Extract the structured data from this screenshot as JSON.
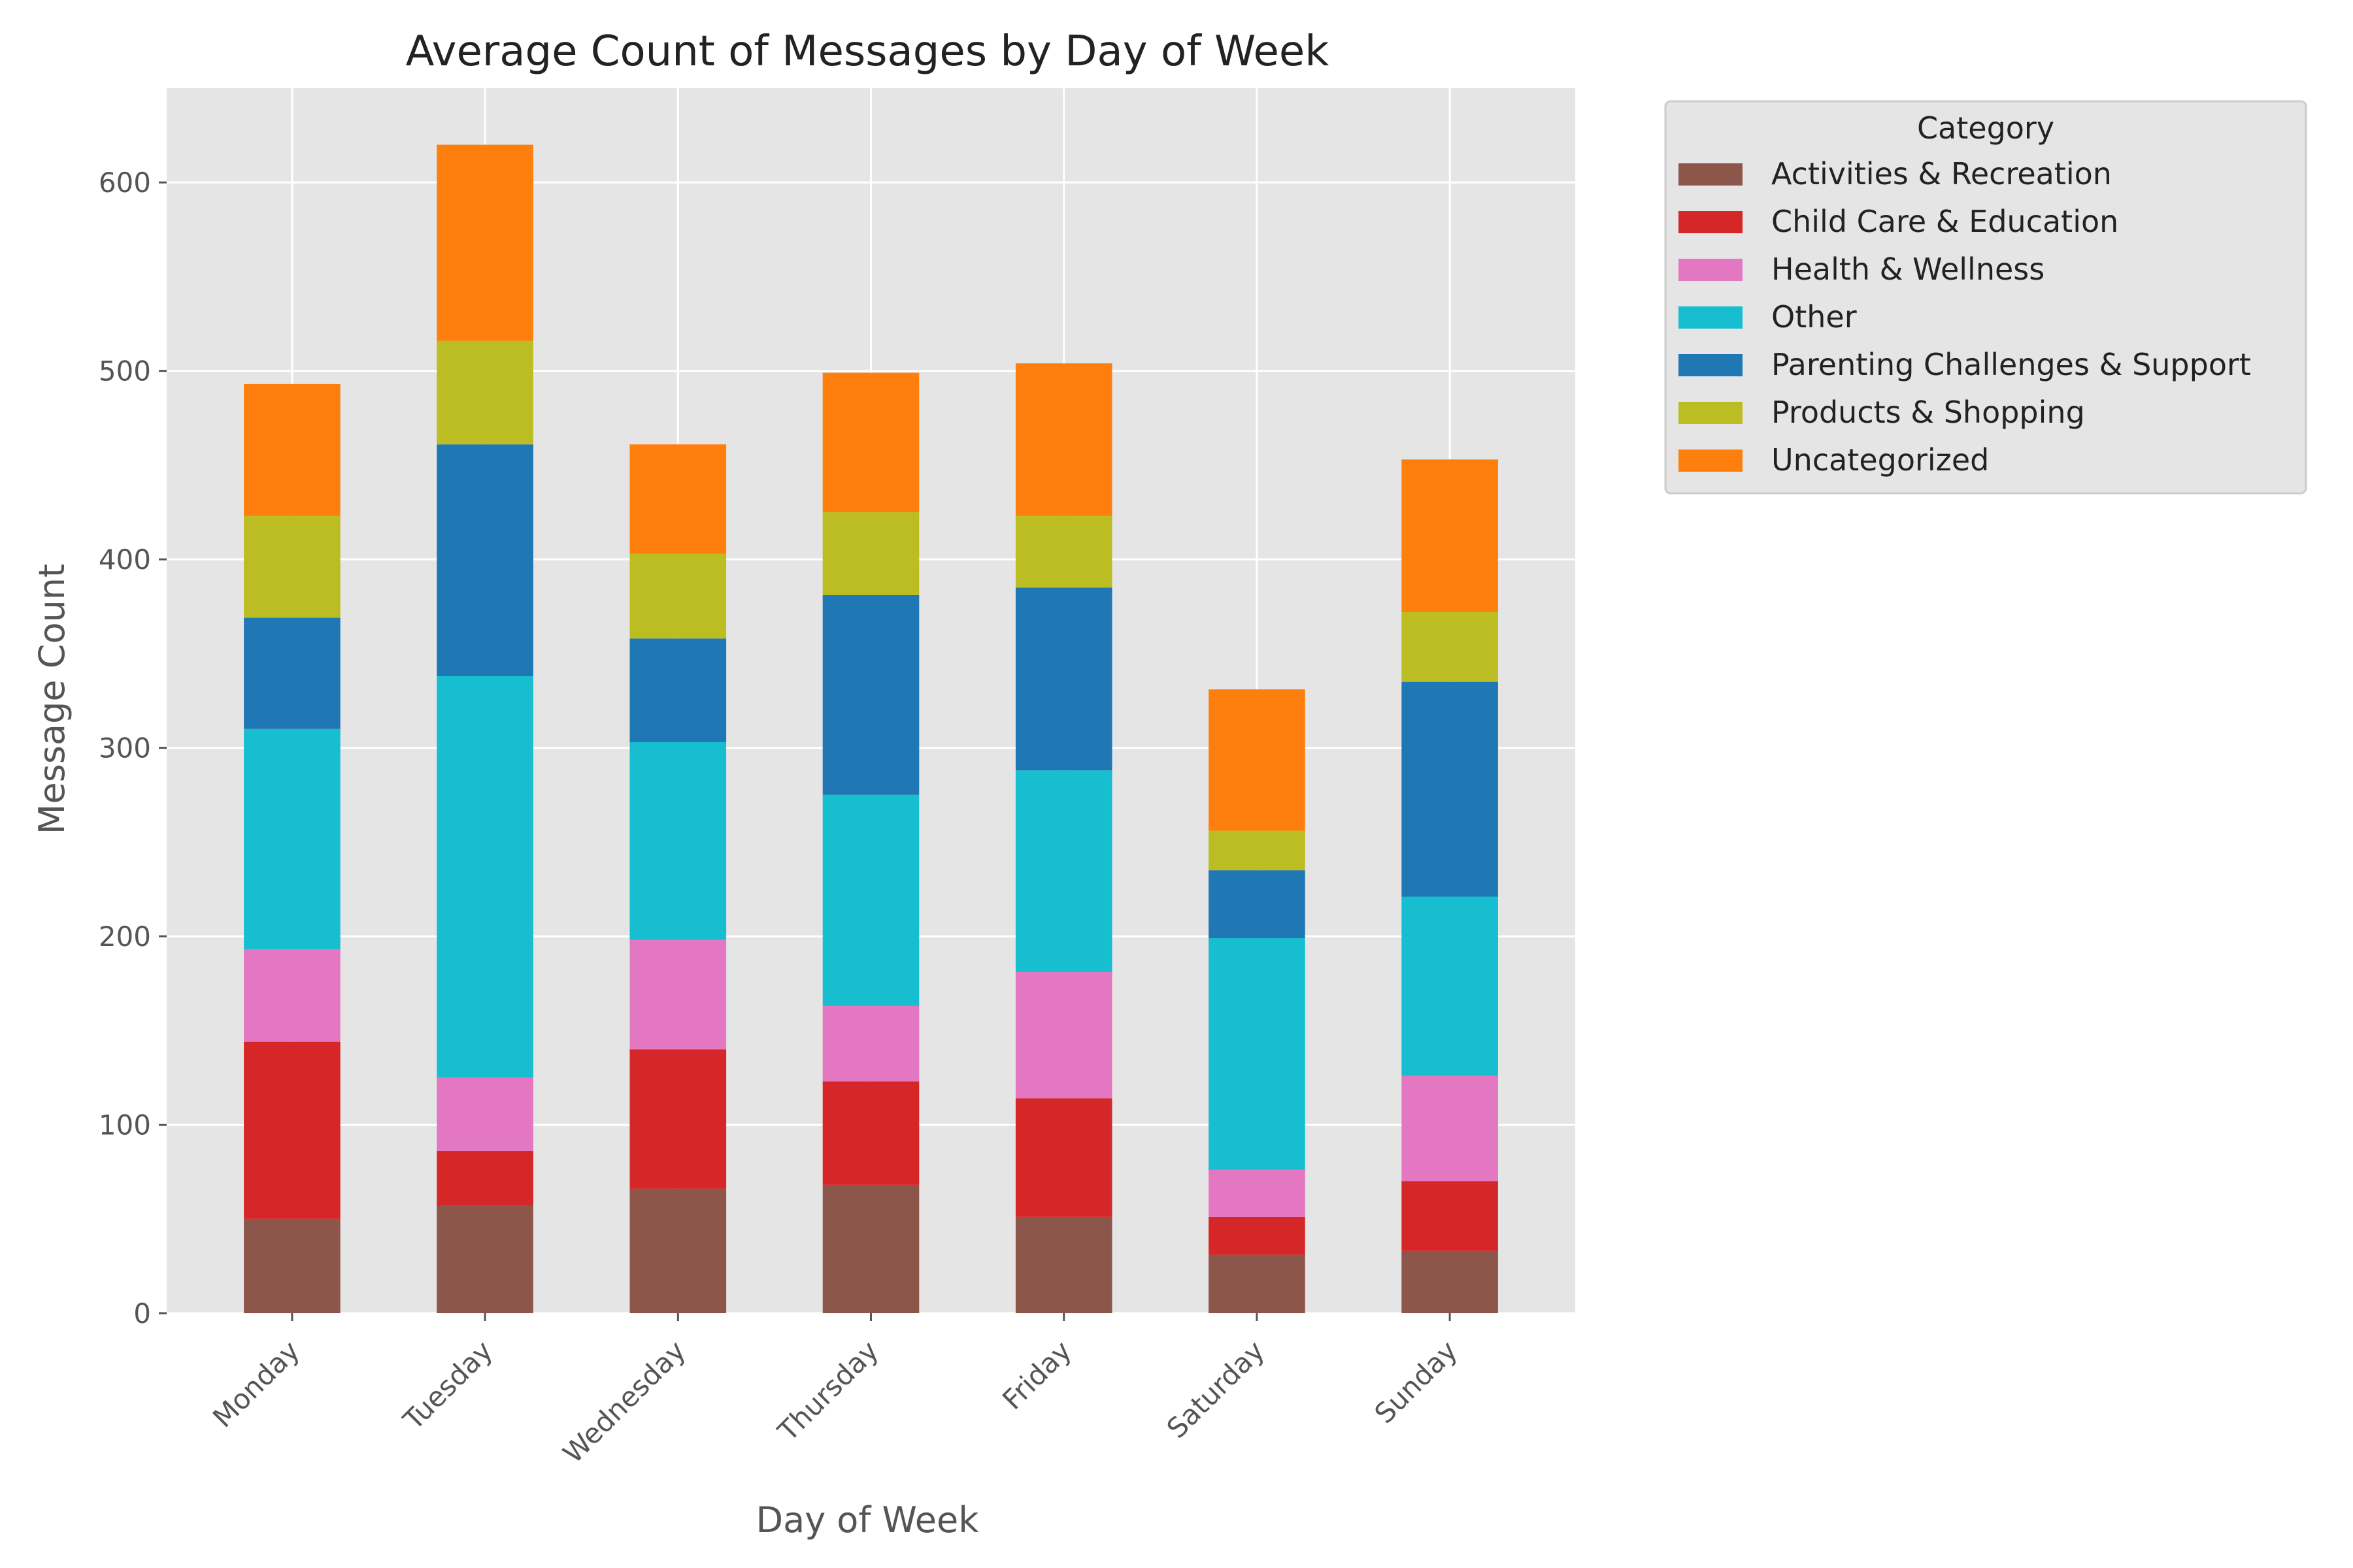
{
  "chart_data": {
    "type": "bar",
    "stacked": true,
    "title": "Average Count of Messages by Day of Week",
    "xlabel": "Day of Week",
    "ylabel": "Message Count",
    "ylim": [
      0,
      650
    ],
    "yticks": [
      0,
      100,
      200,
      300,
      400,
      500,
      600
    ],
    "grid": true,
    "legend": {
      "title": "Category",
      "placement": "outside-top-right"
    },
    "categories": [
      "Monday",
      "Tuesday",
      "Wednesday",
      "Thursday",
      "Friday",
      "Saturday",
      "Sunday"
    ],
    "series": [
      {
        "name": "Activities & Recreation",
        "color": "#8c564b",
        "values": [
          50,
          57,
          66,
          68,
          51,
          31,
          33
        ]
      },
      {
        "name": "Child Care & Education",
        "color": "#d62728",
        "values": [
          94,
          29,
          74,
          55,
          63,
          20,
          37
        ]
      },
      {
        "name": "Health & Wellness",
        "color": "#e377c2",
        "values": [
          49,
          39,
          58,
          40,
          67,
          25,
          56
        ]
      },
      {
        "name": "Other",
        "color": "#17becf",
        "values": [
          117,
          213,
          105,
          112,
          107,
          123,
          95
        ]
      },
      {
        "name": "Parenting Challenges & Support",
        "color": "#1f77b4",
        "values": [
          59,
          123,
          55,
          106,
          97,
          36,
          114
        ]
      },
      {
        "name": "Products & Shopping",
        "color": "#bcbd22",
        "values": [
          54,
          55,
          45,
          44,
          38,
          21,
          37
        ]
      },
      {
        "name": "Uncategorized",
        "color": "#ff7f0e",
        "values": [
          70,
          104,
          58,
          74,
          81,
          75,
          81
        ]
      }
    ]
  }
}
